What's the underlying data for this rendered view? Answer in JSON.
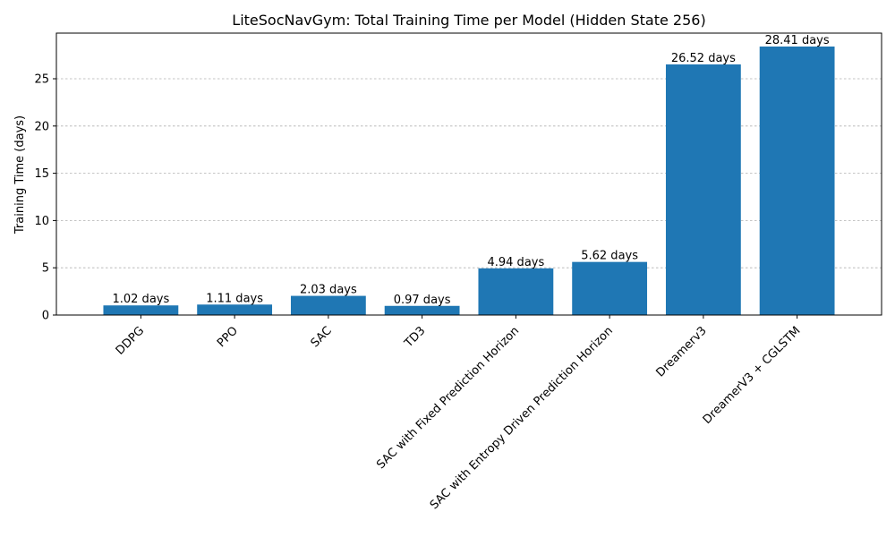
{
  "chart_data": {
    "type": "bar",
    "title": "LiteSocNavGym: Total Training Time per Model (Hidden State 256)",
    "xlabel": "",
    "ylabel": "Training Time (days)",
    "categories": [
      "DDPG",
      "PPO",
      "SAC",
      "TD3",
      "SAC with Fixed Prediction Horizon",
      "SAC with Entropy Driven Prediction Horizon",
      "Dreamerv3",
      "DreamerV3 + CGLSTM"
    ],
    "values": [
      1.02,
      1.11,
      2.03,
      0.97,
      4.94,
      5.62,
      26.52,
      28.41
    ],
    "data_labels": [
      "1.02 days",
      "1.11 days",
      "2.03 days",
      "0.97 days",
      "4.94 days",
      "5.62 days",
      "26.52 days",
      "28.41 days"
    ],
    "yticks": [
      0,
      5,
      10,
      15,
      20,
      25
    ],
    "ytick_labels": [
      "0",
      "5",
      "10",
      "15",
      "20",
      "25"
    ],
    "ylim": [
      0,
      29.83
    ],
    "bar_color": "#1f77b4",
    "grid": "y-axis, dashed",
    "legend": "none"
  }
}
